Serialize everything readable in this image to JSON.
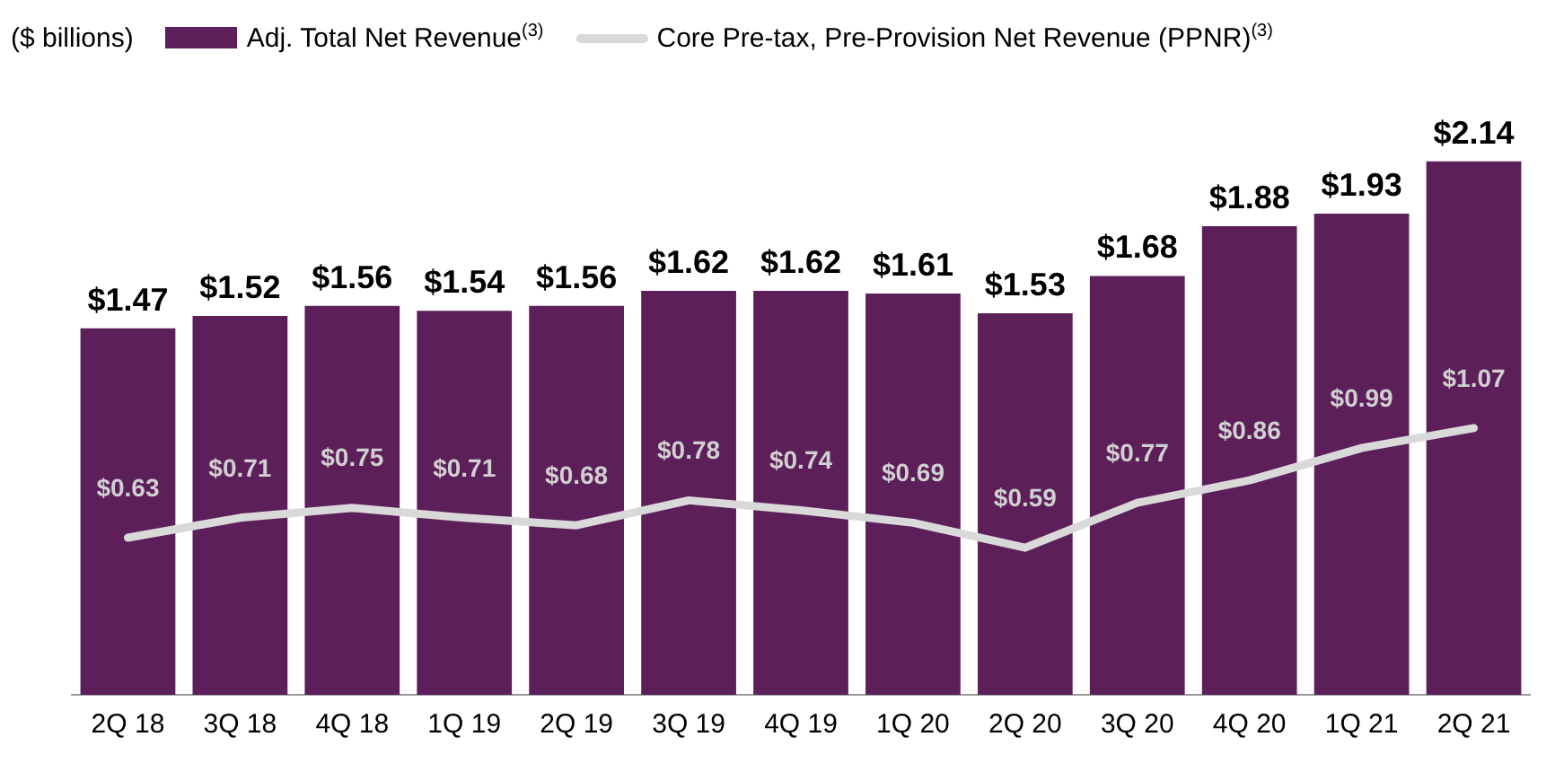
{
  "chart_data": {
    "type": "bar",
    "ylabel": "($ billions)",
    "legend": "top",
    "categories": [
      "2Q 18",
      "3Q 18",
      "4Q 18",
      "1Q 19",
      "2Q 19",
      "3Q 19",
      "4Q 19",
      "1Q 20",
      "2Q 20",
      "3Q 20",
      "4Q 20",
      "1Q 21",
      "2Q 21"
    ],
    "marker": "none",
    "series": [
      {
        "name": "Adj. Total Net Revenue$^{(3)}$",
        "color": "#5c1f5a",
        "values": [
          1.47,
          1.52,
          1.56,
          1.54,
          1.56,
          1.62,
          1.62,
          1.61,
          1.53,
          1.68,
          1.88,
          1.93,
          2.14
        ],
        "value_labels": [
          "$1.47",
          "$1.52",
          "$1.56",
          "$1.54",
          "$1.56",
          "$1.62",
          "$1.62",
          "$1.61",
          "$1.53",
          "$1.68",
          "$1.88",
          "$1.93",
          "$2.14"
        ]
      },
      {
        "name": "Core Pre-tax, Pre-Provision Net Revenue (PPNR)$^{(3)}$",
        "type": "line",
        "color": "#d9d9d9",
        "values": [
          0.63,
          0.71,
          0.75,
          0.71,
          0.68,
          0.78,
          0.74,
          0.69,
          0.59,
          0.77,
          0.86,
          0.99,
          1.07
        ],
        "value_labels": [
          "$0.63",
          "$0.71",
          "$0.75",
          "$0.71",
          "$0.68",
          "$0.78",
          "$0.74",
          "$0.69",
          "$0.59",
          "$0.77",
          "$0.86",
          "$0.99",
          "$1.07"
        ]
      }
    ]
  }
}
